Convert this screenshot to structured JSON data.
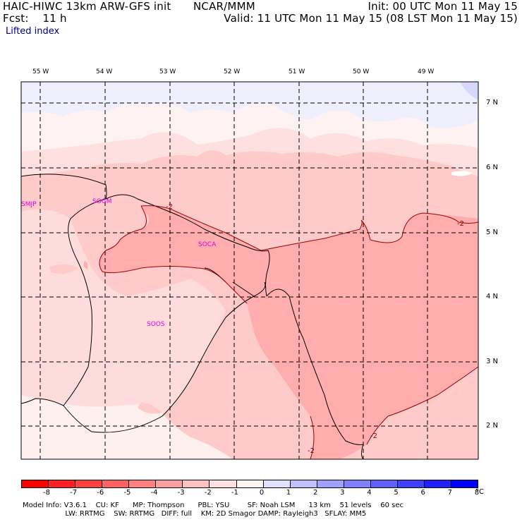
{
  "header": {
    "model": "HAIC-HIWC 13km ARW-GFS init",
    "org": "NCAR/MMM",
    "init": "Init: 00 UTC Mon 11 May 15",
    "fcst": "Fcst:    11 h",
    "valid": "Valid: 11 UTC Mon 11 May 15 (08 LST Mon 11 May 15)",
    "field": "Lifted index"
  },
  "map": {
    "lon_labels": [
      "55 W",
      "54 W",
      "53 W",
      "52 W",
      "51 W",
      "50 W",
      "49 W"
    ],
    "lat_labels": [
      "7 N",
      "6 N",
      "5 N",
      "4 N",
      "3 N",
      "2 N"
    ],
    "stations": [
      "SMJP",
      "SOGM",
      "SOCA",
      "SOOS"
    ],
    "contour_labels": [
      "-2",
      "-2",
      "-2",
      "-2"
    ]
  },
  "colorbar": {
    "ticks": [
      "-8",
      "-7",
      "-6",
      "-5",
      "-4",
      "-3",
      "-2",
      "-1",
      "0",
      "1",
      "2",
      "3",
      "4",
      "5",
      "6",
      "7",
      "8"
    ],
    "unit": "°C",
    "colors": [
      "#ff0000",
      "#ff2020",
      "#ff4040",
      "#ff6060",
      "#ff8080",
      "#ffa0a0",
      "#ffc0c0",
      "#ffe0e0",
      "#fff4f4",
      "#e0e0ff",
      "#c0c0ff",
      "#a0a0ff",
      "#8080ff",
      "#6060ff",
      "#4040ff",
      "#2020ff",
      "#0000ff"
    ]
  },
  "footer": {
    "line1": "Model Info: V3.6.1    CU: KF      MP: Thompson      PBL: YSU        SF: Noah LSM      13 km    51 levels    60 sec",
    "line2": "                   LW: RRTMG    SW: RRTMG   DIFF: full    KM: 2D Smagor DAMP: Rayleigh3   SFLAY: MM5"
  }
}
